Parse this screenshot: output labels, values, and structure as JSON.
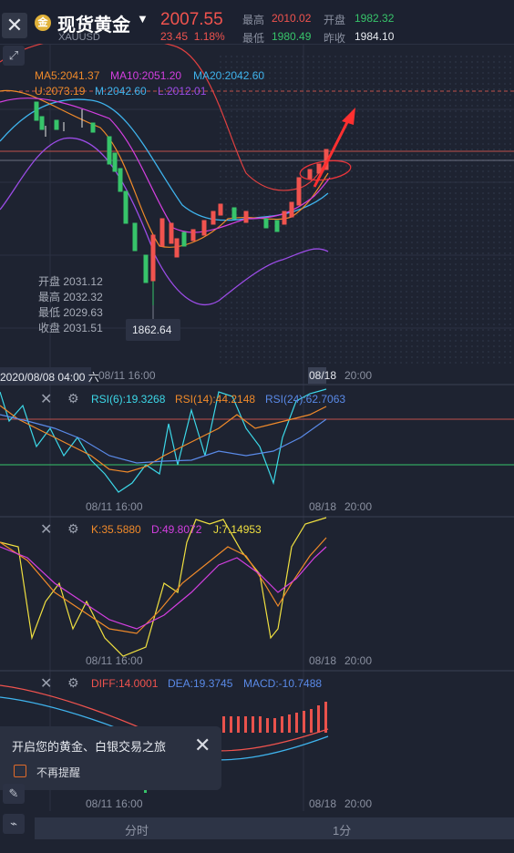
{
  "header": {
    "close_icon": "close-icon",
    "title": "现货黄金",
    "code": "XAUUSD",
    "price": "2007.55",
    "change": "23.45",
    "change_pct": "1.18%",
    "high_label": "最高",
    "high": "2010.02",
    "low_label": "最低",
    "low": "1980.49",
    "open_label": "开盘",
    "open": "1982.32",
    "prev_label": "昨收",
    "prev": "1984.10"
  },
  "main_chart": {
    "ma5": "MA5:2041.37",
    "ma10": "MA10:2051.20",
    "ma20": "MA20:2042.60",
    "boll_u": "U:2073.19",
    "boll_m": "M:2042.60",
    "boll_l": "L:2012.01",
    "ohlc": {
      "open_label": "开盘",
      "open": "2031.12",
      "high_label": "最高",
      "high": "2032.32",
      "low_label": "最低",
      "low": "2029.63",
      "close_label": "收盘",
      "close": "2031.51"
    },
    "low_marker": "1862.64",
    "time_left": "2020/08/08 04:00 六",
    "time_mid": "08/11 16:00",
    "time_right_1": "08/18",
    "time_right_2": "20:00"
  },
  "rsi_panel": {
    "rsi6": "RSI(6):19.3268",
    "rsi14": "RSI(14):44.2148",
    "rsi24": "RSI(24):62.7063",
    "time_mid": "08/11 16:00",
    "time_right_1": "08/18",
    "time_right_2": "20:00"
  },
  "kdj_panel": {
    "k": "K:35.5880",
    "d": "D:49.8072",
    "j": "J:7.14953",
    "time_mid": "08/11 16:00",
    "time_right_1": "08/18",
    "time_right_2": "20:00"
  },
  "macd_panel": {
    "diff": "DIFF:14.0001",
    "dea": "DEA:19.3745",
    "macd": "MACD:-10.7488",
    "time_mid": "08/11 16:00",
    "time_right_1": "08/18",
    "time_right_2": "20:00"
  },
  "popup": {
    "title": "开启您的黄金、白银交易之旅",
    "checkbox_label": "不再提醒"
  },
  "tabs": {
    "time_share": "分时",
    "one_min": "1分"
  },
  "colors": {
    "ma5": "#f08a2a",
    "ma10": "#d33fe0",
    "ma20": "#3fb4ee",
    "red": "#f0534e",
    "green": "#37c46a"
  }
}
